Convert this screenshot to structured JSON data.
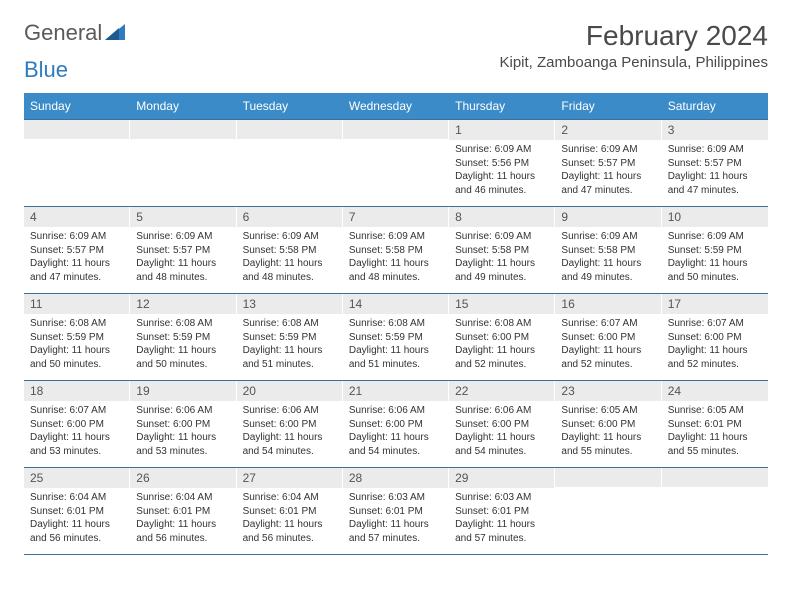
{
  "logo": {
    "word1": "General",
    "word2": "Blue"
  },
  "title": "February 2024",
  "location": "Kipit, Zamboanga Peninsula, Philippines",
  "colors": {
    "header_bg": "#3b8bc8",
    "header_text": "#ffffff",
    "row_border": "#3b6f9e",
    "daynum_bg": "#ebebeb",
    "logo_gray": "#5a5a5a",
    "logo_blue": "#2f7bbf",
    "text": "#333333",
    "background": "#ffffff"
  },
  "dayNames": [
    "Sunday",
    "Monday",
    "Tuesday",
    "Wednesday",
    "Thursday",
    "Friday",
    "Saturday"
  ],
  "weeks": [
    [
      null,
      null,
      null,
      null,
      {
        "d": "1",
        "sr": "6:09 AM",
        "ss": "5:56 PM",
        "dl": "11 hours and 46 minutes."
      },
      {
        "d": "2",
        "sr": "6:09 AM",
        "ss": "5:57 PM",
        "dl": "11 hours and 47 minutes."
      },
      {
        "d": "3",
        "sr": "6:09 AM",
        "ss": "5:57 PM",
        "dl": "11 hours and 47 minutes."
      }
    ],
    [
      {
        "d": "4",
        "sr": "6:09 AM",
        "ss": "5:57 PM",
        "dl": "11 hours and 47 minutes."
      },
      {
        "d": "5",
        "sr": "6:09 AM",
        "ss": "5:57 PM",
        "dl": "11 hours and 48 minutes."
      },
      {
        "d": "6",
        "sr": "6:09 AM",
        "ss": "5:58 PM",
        "dl": "11 hours and 48 minutes."
      },
      {
        "d": "7",
        "sr": "6:09 AM",
        "ss": "5:58 PM",
        "dl": "11 hours and 48 minutes."
      },
      {
        "d": "8",
        "sr": "6:09 AM",
        "ss": "5:58 PM",
        "dl": "11 hours and 49 minutes."
      },
      {
        "d": "9",
        "sr": "6:09 AM",
        "ss": "5:58 PM",
        "dl": "11 hours and 49 minutes."
      },
      {
        "d": "10",
        "sr": "6:09 AM",
        "ss": "5:59 PM",
        "dl": "11 hours and 50 minutes."
      }
    ],
    [
      {
        "d": "11",
        "sr": "6:08 AM",
        "ss": "5:59 PM",
        "dl": "11 hours and 50 minutes."
      },
      {
        "d": "12",
        "sr": "6:08 AM",
        "ss": "5:59 PM",
        "dl": "11 hours and 50 minutes."
      },
      {
        "d": "13",
        "sr": "6:08 AM",
        "ss": "5:59 PM",
        "dl": "11 hours and 51 minutes."
      },
      {
        "d": "14",
        "sr": "6:08 AM",
        "ss": "5:59 PM",
        "dl": "11 hours and 51 minutes."
      },
      {
        "d": "15",
        "sr": "6:08 AM",
        "ss": "6:00 PM",
        "dl": "11 hours and 52 minutes."
      },
      {
        "d": "16",
        "sr": "6:07 AM",
        "ss": "6:00 PM",
        "dl": "11 hours and 52 minutes."
      },
      {
        "d": "17",
        "sr": "6:07 AM",
        "ss": "6:00 PM",
        "dl": "11 hours and 52 minutes."
      }
    ],
    [
      {
        "d": "18",
        "sr": "6:07 AM",
        "ss": "6:00 PM",
        "dl": "11 hours and 53 minutes."
      },
      {
        "d": "19",
        "sr": "6:06 AM",
        "ss": "6:00 PM",
        "dl": "11 hours and 53 minutes."
      },
      {
        "d": "20",
        "sr": "6:06 AM",
        "ss": "6:00 PM",
        "dl": "11 hours and 54 minutes."
      },
      {
        "d": "21",
        "sr": "6:06 AM",
        "ss": "6:00 PM",
        "dl": "11 hours and 54 minutes."
      },
      {
        "d": "22",
        "sr": "6:06 AM",
        "ss": "6:00 PM",
        "dl": "11 hours and 54 minutes."
      },
      {
        "d": "23",
        "sr": "6:05 AM",
        "ss": "6:00 PM",
        "dl": "11 hours and 55 minutes."
      },
      {
        "d": "24",
        "sr": "6:05 AM",
        "ss": "6:01 PM",
        "dl": "11 hours and 55 minutes."
      }
    ],
    [
      {
        "d": "25",
        "sr": "6:04 AM",
        "ss": "6:01 PM",
        "dl": "11 hours and 56 minutes."
      },
      {
        "d": "26",
        "sr": "6:04 AM",
        "ss": "6:01 PM",
        "dl": "11 hours and 56 minutes."
      },
      {
        "d": "27",
        "sr": "6:04 AM",
        "ss": "6:01 PM",
        "dl": "11 hours and 56 minutes."
      },
      {
        "d": "28",
        "sr": "6:03 AM",
        "ss": "6:01 PM",
        "dl": "11 hours and 57 minutes."
      },
      {
        "d": "29",
        "sr": "6:03 AM",
        "ss": "6:01 PM",
        "dl": "11 hours and 57 minutes."
      },
      null,
      null
    ]
  ],
  "labels": {
    "sunrise": "Sunrise:",
    "sunset": "Sunset:",
    "daylight": "Daylight:"
  }
}
